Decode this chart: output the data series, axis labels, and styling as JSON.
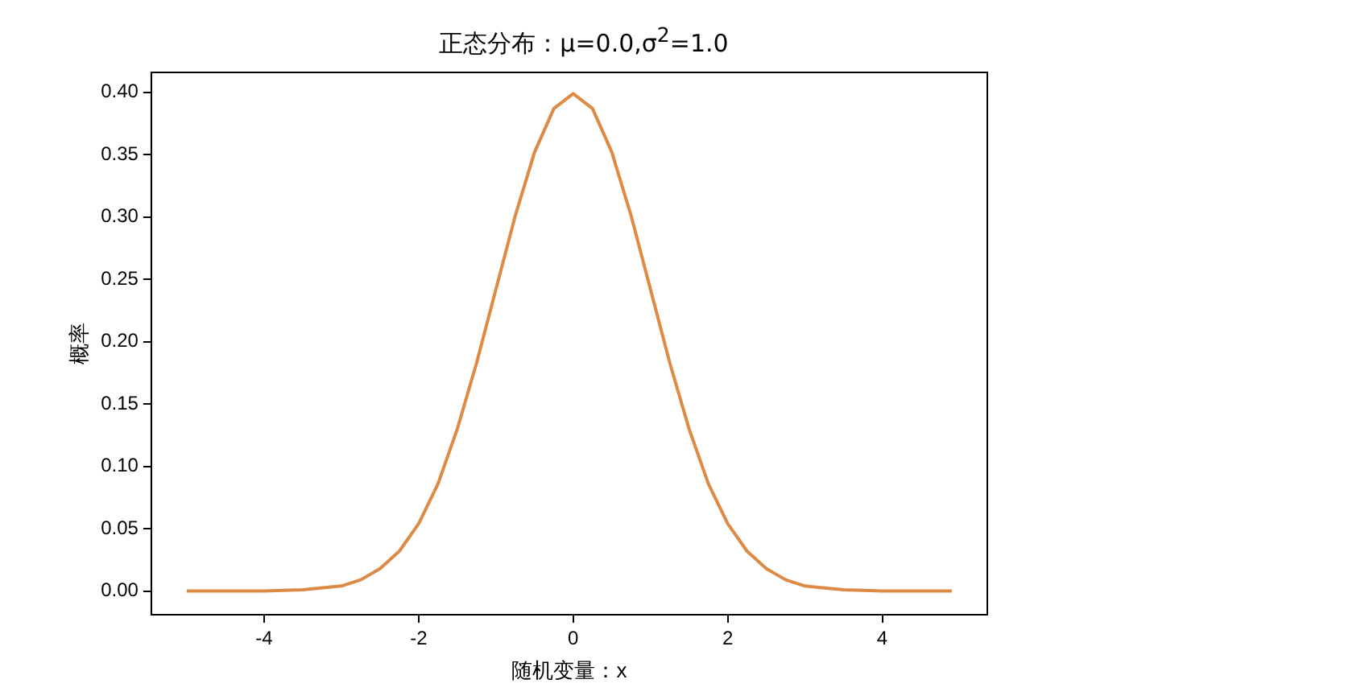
{
  "chart_data": {
    "type": "line",
    "title": "正态分布：μ=0.0,σ$^{2}$=1.0",
    "xlabel": "随机变量：x",
    "ylabel": "概率",
    "x": [
      -5,
      -4.5,
      -4,
      -3.5,
      -3,
      -2.75,
      -2.5,
      -2.25,
      -2,
      -1.75,
      -1.5,
      -1.25,
      -1,
      -0.75,
      -0.5,
      -0.25,
      0,
      0.25,
      0.5,
      0.75,
      1,
      1.25,
      1.5,
      1.75,
      2,
      2.25,
      2.5,
      2.75,
      3,
      3.5,
      4,
      4.5,
      4.9
    ],
    "series": [
      {
        "color": "#dd8a45",
        "values": [
          0.0,
          0.0,
          0.0,
          0.001,
          0.004,
          0.009,
          0.018,
          0.032,
          0.054,
          0.086,
          0.13,
          0.183,
          0.242,
          0.301,
          0.352,
          0.387,
          0.399,
          0.387,
          0.352,
          0.301,
          0.242,
          0.183,
          0.13,
          0.086,
          0.054,
          0.032,
          0.018,
          0.009,
          0.004,
          0.001,
          0.0,
          0.0,
          0.0
        ]
      }
    ],
    "xlim": [
      -5.46,
      5.36
    ],
    "xticks": [
      -4,
      -2,
      0,
      2,
      4
    ],
    "ylim": [
      -0.019,
      0.416
    ],
    "yticks": [
      {
        "value": 0,
        "label": "0.00"
      },
      {
        "value": 0.05,
        "label": "0.05"
      },
      {
        "value": 0.1,
        "label": "0.10"
      },
      {
        "value": 0.15,
        "label": "0.15"
      },
      {
        "value": 0.2,
        "label": "0.20"
      },
      {
        "value": 0.25,
        "label": "0.25"
      },
      {
        "value": 0.3,
        "label": "0.30"
      },
      {
        "value": 0.35,
        "label": "0.35"
      },
      {
        "value": 0.4,
        "label": "0.40"
      }
    ],
    "grid": false,
    "legend": false,
    "marker": "none",
    "line_style": "solid"
  }
}
